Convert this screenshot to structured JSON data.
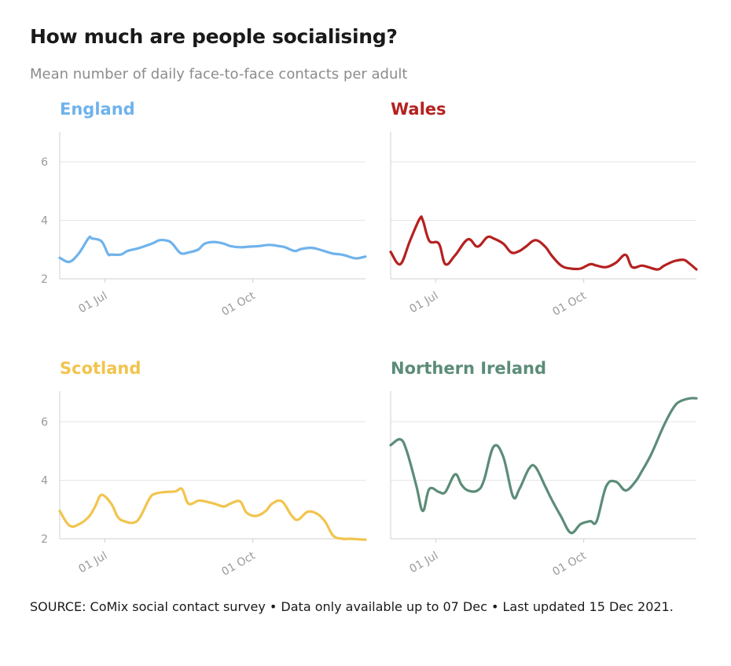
{
  "header": {
    "title": "How much are people socialising?",
    "subtitle": "Mean number of daily face-to-face contacts per adult"
  },
  "footer": {
    "source": "SOURCE: CoMix social contact survey • Data only available up to 07 Dec • Last updated 15 Dec 2021."
  },
  "chart_data": [
    {
      "type": "line",
      "title": "England",
      "color": "#6fb3ec",
      "x_start_day": 0,
      "x_end_day": 190,
      "xticks": [
        {
          "day": 28,
          "label": "01 Jul"
        },
        {
          "day": 120,
          "label": "01 Oct"
        }
      ],
      "ylim": [
        2,
        7
      ],
      "yticks": [
        2,
        4,
        6
      ],
      "show_ytick_labels": true,
      "x": [
        0,
        6,
        12,
        18,
        20,
        26,
        30,
        32,
        38,
        42,
        48,
        52,
        58,
        62,
        67,
        70,
        75,
        80,
        86,
        90,
        96,
        102,
        106,
        112,
        118,
        124,
        130,
        136,
        140,
        146,
        150,
        156,
        160,
        166,
        170,
        176,
        182,
        185,
        190
      ],
      "y": [
        2.72,
        2.58,
        2.88,
        3.4,
        3.38,
        3.28,
        2.85,
        2.83,
        2.83,
        2.95,
        3.03,
        3.1,
        3.22,
        3.32,
        3.3,
        3.2,
        2.88,
        2.9,
        3.0,
        3.2,
        3.26,
        3.2,
        3.12,
        3.08,
        3.1,
        3.12,
        3.16,
        3.12,
        3.08,
        2.95,
        3.02,
        3.06,
        3.02,
        2.92,
        2.86,
        2.82,
        2.72,
        2.7,
        2.76
      ]
    },
    {
      "type": "line",
      "title": "Wales",
      "color": "#b52120",
      "x_start_day": 0,
      "x_end_day": 190,
      "xticks": [
        {
          "day": 28,
          "label": "01 Jul"
        },
        {
          "day": 120,
          "label": "01 Oct"
        }
      ],
      "ylim": [
        2,
        7
      ],
      "yticks": [
        2,
        4,
        6
      ],
      "show_ytick_labels": false,
      "x": [
        0,
        6,
        12,
        18,
        20,
        24,
        30,
        34,
        40,
        48,
        54,
        60,
        64,
        70,
        75,
        80,
        84,
        90,
        96,
        100,
        106,
        112,
        118,
        124,
        128,
        134,
        140,
        146,
        150,
        156,
        160,
        166,
        170,
        176,
        182,
        185,
        190
      ],
      "y": [
        2.92,
        2.5,
        3.3,
        4.05,
        4.0,
        3.3,
        3.2,
        2.5,
        2.8,
        3.35,
        3.1,
        3.42,
        3.38,
        3.2,
        2.9,
        2.95,
        3.1,
        3.32,
        3.1,
        2.8,
        2.45,
        2.35,
        2.35,
        2.5,
        2.45,
        2.4,
        2.55,
        2.82,
        2.4,
        2.45,
        2.4,
        2.32,
        2.45,
        2.6,
        2.65,
        2.55,
        2.32
      ]
    },
    {
      "type": "line",
      "title": "Scotland",
      "color": "#f2c44e",
      "x_start_day": 0,
      "x_end_day": 190,
      "xticks": [
        {
          "day": 28,
          "label": "01 Jul"
        },
        {
          "day": 120,
          "label": "01 Oct"
        }
      ],
      "ylim": [
        2,
        7
      ],
      "yticks": [
        2,
        4,
        6
      ],
      "show_ytick_labels": true,
      "x": [
        0,
        6,
        12,
        18,
        22,
        26,
        32,
        36,
        40,
        46,
        50,
        56,
        60,
        66,
        72,
        76,
        80,
        86,
        90,
        96,
        102,
        106,
        112,
        116,
        122,
        128,
        132,
        138,
        144,
        148,
        154,
        160,
        165,
        170,
        176,
        180,
        186,
        190
      ],
      "y": [
        2.95,
        2.45,
        2.5,
        2.75,
        3.1,
        3.5,
        3.2,
        2.75,
        2.6,
        2.55,
        2.75,
        3.4,
        3.55,
        3.6,
        3.62,
        3.7,
        3.2,
        3.3,
        3.28,
        3.2,
        3.1,
        3.2,
        3.28,
        2.9,
        2.78,
        2.95,
        3.2,
        3.28,
        2.8,
        2.65,
        2.92,
        2.85,
        2.58,
        2.1,
        2.0,
        2.0,
        1.98,
        1.97
      ]
    },
    {
      "type": "line",
      "title": "Northern Ireland",
      "color": "#5c8c78",
      "x_start_day": 0,
      "x_end_day": 190,
      "xticks": [
        {
          "day": 28,
          "label": "01 Jul"
        },
        {
          "day": 120,
          "label": "01 Oct"
        }
      ],
      "ylim": [
        2,
        7
      ],
      "yticks": [
        2,
        4,
        6
      ],
      "show_ytick_labels": false,
      "x": [
        0,
        6,
        10,
        16,
        20,
        24,
        30,
        34,
        40,
        44,
        48,
        54,
        58,
        64,
        70,
        76,
        80,
        86,
        90,
        96,
        100,
        106,
        112,
        118,
        124,
        128,
        134,
        140,
        146,
        152,
        156,
        162,
        170,
        176,
        180,
        186,
        190
      ],
      "y": [
        5.2,
        5.4,
        5.0,
        3.8,
        2.95,
        3.7,
        3.6,
        3.6,
        4.2,
        3.85,
        3.65,
        3.65,
        4.0,
        5.15,
        4.8,
        3.45,
        3.7,
        4.4,
        4.45,
        3.8,
        3.35,
        2.75,
        2.2,
        2.5,
        2.6,
        2.6,
        3.8,
        3.95,
        3.65,
        3.95,
        4.3,
        4.9,
        5.9,
        6.5,
        6.7,
        6.8,
        6.8
      ]
    }
  ]
}
